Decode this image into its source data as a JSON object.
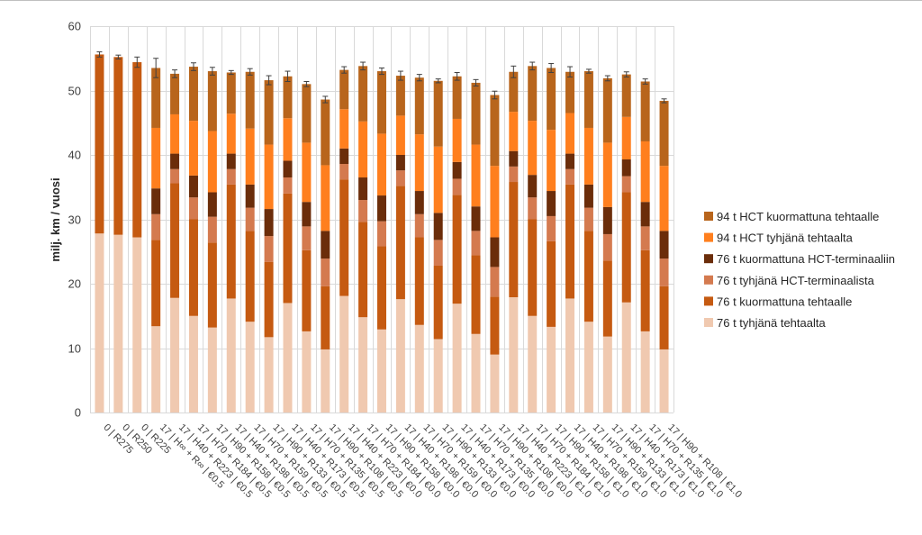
{
  "chart_data": {
    "type": "bar",
    "stacked": true,
    "ylabel": "milj. km / vuosi",
    "ylim": [
      0,
      60
    ],
    "yticks": [
      0,
      10,
      20,
      30,
      40,
      50,
      60
    ],
    "grid": true,
    "legend_position": "right",
    "categories": [
      "0 | R275",
      "0 | R250",
      "0 | R225",
      "17 | H∞ + R∞ | €0.5",
      "17 | H40 + R223 | €0.5",
      "17 | H70 + R184 | €0.5",
      "17 | H90 + R158 | €0.5",
      "17 | H40 + R198 | €0.5",
      "17 | H70 + R159 | €0.5",
      "17 | H90 + R133 | €0.5",
      "17 | H40 + R173 | €0.5",
      "17 | H70 + R135 | €0.5",
      "17 | H90 + R108 | €0.5",
      "17 | H40 + R223 | €0.0",
      "17 | H70 + R184 | €0.0",
      "17 | H90 + R158 | €0.0",
      "17 | H40 + R198 | €0.0",
      "17 | H70 + R159 | €0.0",
      "17 | H90 + R133 | €0.0",
      "17 | H40 + R173 | €0.0",
      "17 | H70 + R135 | €0.0",
      "17 | H90 + R108 | €0.0",
      "17 | H40 + R223 | €1.0",
      "17 | H70 + R184 | €1.0",
      "17 | H90 + R158 | €1.0",
      "17 | H40 + R198 | €1.0",
      "17 | H70 + R159 | €1.0",
      "17 | H90 + R133 | €1.0",
      "17 | H40 + R173 | €1.0",
      "17 | H70 + R135 | €1.0",
      "17 | H90 + R108 | €1.0"
    ],
    "series": [
      {
        "name": "76 t tyhjänä tehtaalta",
        "color": "#f0c9b0",
        "values": [
          27.8,
          27.6,
          27.2,
          13.4,
          17.8,
          15.0,
          13.2,
          17.7,
          14.1,
          11.7,
          17.0,
          12.6,
          9.8,
          18.1,
          14.8,
          12.9,
          17.6,
          13.6,
          11.4,
          16.9,
          12.2,
          9.0,
          17.9,
          15.0,
          13.3,
          17.7,
          14.1,
          11.8,
          17.1,
          12.6,
          9.8
        ]
      },
      {
        "name": "76 t kuormattuna tehtaalle",
        "color": "#c55a11",
        "values": [
          27.8,
          27.6,
          27.2,
          13.4,
          17.8,
          15.0,
          13.2,
          17.7,
          14.1,
          11.7,
          17.0,
          12.6,
          9.8,
          18.1,
          14.8,
          12.9,
          17.6,
          13.6,
          11.4,
          16.9,
          12.2,
          9.0,
          17.9,
          15.0,
          13.3,
          17.7,
          14.1,
          11.8,
          17.1,
          12.6,
          9.8
        ]
      },
      {
        "name": "76 t tyhjänä HCT-terminaalista",
        "color": "#d47a4f",
        "values": [
          0,
          0,
          0,
          4.0,
          2.2,
          3.4,
          4.0,
          2.4,
          3.6,
          4.0,
          2.5,
          3.7,
          4.3,
          2.4,
          3.4,
          3.9,
          2.4,
          3.6,
          4.0,
          2.5,
          3.8,
          4.6,
          2.4,
          3.4,
          3.9,
          2.4,
          3.6,
          4.1,
          2.5,
          3.7,
          4.3
        ]
      },
      {
        "name": "76 t kuormattuna HCT-terminaaliin",
        "color": "#6b2d0a",
        "values": [
          0,
          0,
          0,
          4.0,
          2.4,
          3.4,
          3.8,
          2.4,
          3.6,
          4.2,
          2.6,
          3.8,
          4.3,
          2.4,
          3.5,
          4.0,
          2.4,
          3.6,
          4.2,
          2.6,
          3.8,
          4.6,
          2.4,
          3.5,
          3.9,
          2.4,
          3.6,
          4.2,
          2.6,
          3.8,
          4.3
        ]
      },
      {
        "name": "94 t HCT tyhjänä tehtaalta",
        "color": "#ff7f1e",
        "values": [
          0,
          0,
          0,
          9.4,
          6.1,
          8.5,
          9.5,
          6.2,
          8.7,
          10.0,
          6.6,
          9.2,
          10.2,
          6.1,
          8.7,
          9.6,
          6.1,
          8.8,
          10.3,
          6.7,
          9.6,
          11.1,
          6.1,
          8.4,
          9.5,
          6.3,
          8.8,
          10.0,
          6.6,
          9.4,
          10.1
        ]
      },
      {
        "name": "94 t HCT kuormattuna tehtaalle",
        "color": "#b8651c",
        "values": [
          0,
          0,
          0,
          9.3,
          6.3,
          8.4,
          9.3,
          6.4,
          8.8,
          10.0,
          6.5,
          9.1,
          10.2,
          6.1,
          8.6,
          9.7,
          6.2,
          8.8,
          10.2,
          6.6,
          9.6,
          11.0,
          6.2,
          8.5,
          9.6,
          6.4,
          8.8,
          10.0,
          6.6,
          9.3,
          10.1
        ]
      }
    ],
    "error": [
      0.4,
      0.3,
      0.8,
      1.5,
      0.6,
      0.6,
      0.6,
      0.3,
      0.5,
      0.7,
      0.8,
      0.4,
      0.5,
      0.5,
      0.6,
      0.5,
      0.7,
      0.5,
      0.3,
      0.6,
      0.5,
      0.6,
      0.9,
      0.6,
      0.7,
      0.8,
      0.3,
      0.4,
      0.4,
      0.4,
      0.3
    ]
  }
}
